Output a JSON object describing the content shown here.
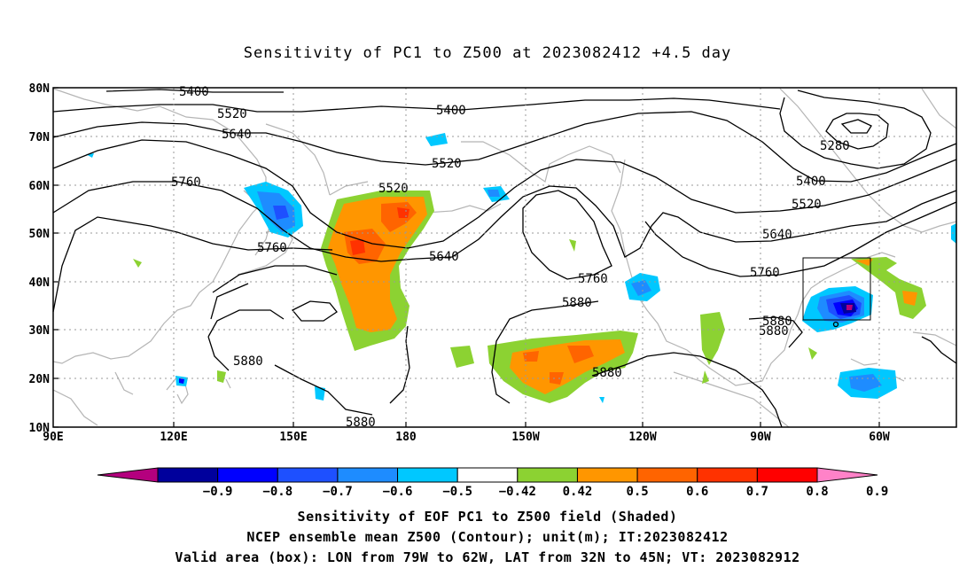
{
  "title": "Sensitivity of PC1 to Z500 at 2023082412 +4.5 day",
  "lat_labels": [
    "80N",
    "70N",
    "60N",
    "50N",
    "40N",
    "30N",
    "20N",
    "10N"
  ],
  "lon_labels": [
    "90E",
    "120E",
    "150E",
    "180",
    "150W",
    "120W",
    "90W",
    "60W"
  ],
  "contour_labels": {
    "c5400a": "5400",
    "c5400b": "5400",
    "c5520a": "5520",
    "c5520b": "5520",
    "c5520c": "5520",
    "c5640a": "5640",
    "c5640b": "5640",
    "c5760a": "5760",
    "c5760b": "5760",
    "c5760c": "5760",
    "c5880a": "5880",
    "c5880b": "5880",
    "c5880c": "5880",
    "c5880d": "5880",
    "c5880e": "5880",
    "c5400c": "5400",
    "c5520d": "5520",
    "c5640c": "5640",
    "c5760d": "5760",
    "c5280": "5280"
  },
  "colorbar": {
    "colors": [
      "#b4007e",
      "#00009c",
      "#0000ff",
      "#1e50ff",
      "#1e8cff",
      "#00c8ff",
      "#ffffff",
      "#8cd232",
      "#ff9600",
      "#ff6400",
      "#ff3200",
      "#ff0000",
      "#ff82c8"
    ],
    "labels": [
      "-0.9",
      "-0.8",
      "-0.7",
      "-0.6",
      "-0.5",
      "-0.42",
      "0.42",
      "0.5",
      "0.6",
      "0.7",
      "0.8",
      "0.9"
    ]
  },
  "captions": {
    "line1": "Sensitivity of EOF PC1 to Z500 field (Shaded)",
    "line2": "NCEP ensemble mean Z500 (Contour); unit(m); IT:2023082412",
    "line3": "Valid area (box): LON from 79W to 62W, LAT from 32N to 45N; VT: 2023082912"
  }
}
